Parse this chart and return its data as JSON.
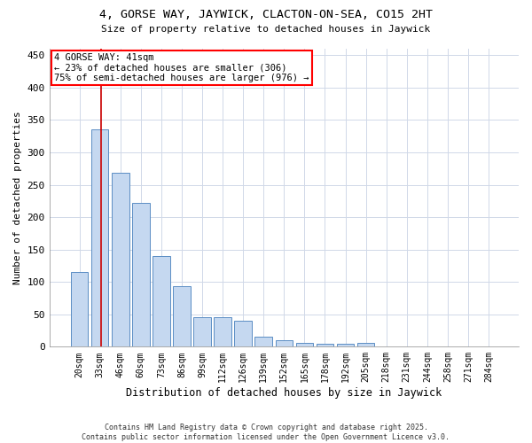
{
  "title_line1": "4, GORSE WAY, JAYWICK, CLACTON-ON-SEA, CO15 2HT",
  "title_line2": "Size of property relative to detached houses in Jaywick",
  "xlabel": "Distribution of detached houses by size in Jaywick",
  "ylabel": "Number of detached properties",
  "categories": [
    "20sqm",
    "33sqm",
    "46sqm",
    "60sqm",
    "73sqm",
    "86sqm",
    "99sqm",
    "112sqm",
    "126sqm",
    "139sqm",
    "152sqm",
    "165sqm",
    "178sqm",
    "192sqm",
    "205sqm",
    "218sqm",
    "231sqm",
    "244sqm",
    "258sqm",
    "271sqm",
    "284sqm"
  ],
  "values": [
    115,
    335,
    268,
    222,
    140,
    93,
    46,
    45,
    40,
    15,
    10,
    6,
    5,
    5,
    6,
    1,
    1,
    1,
    1,
    1,
    1
  ],
  "bar_color": "#c5d8f0",
  "bar_edge_color": "#5b8ec4",
  "annotation_line1": "4 GORSE WAY: 41sqm",
  "annotation_line2": "← 23% of detached houses are smaller (306)",
  "annotation_line3": "75% of semi-detached houses are larger (976) →",
  "vline_x_idx": 1,
  "vline_color": "#cc0000",
  "ylim": [
    0,
    460
  ],
  "yticks": [
    0,
    50,
    100,
    150,
    200,
    250,
    300,
    350,
    400,
    450
  ],
  "footer_line1": "Contains HM Land Registry data © Crown copyright and database right 2025.",
  "footer_line2": "Contains public sector information licensed under the Open Government Licence v3.0.",
  "bg_color": "#ffffff",
  "plot_bg_color": "#ffffff",
  "grid_color": "#d0d8e8"
}
